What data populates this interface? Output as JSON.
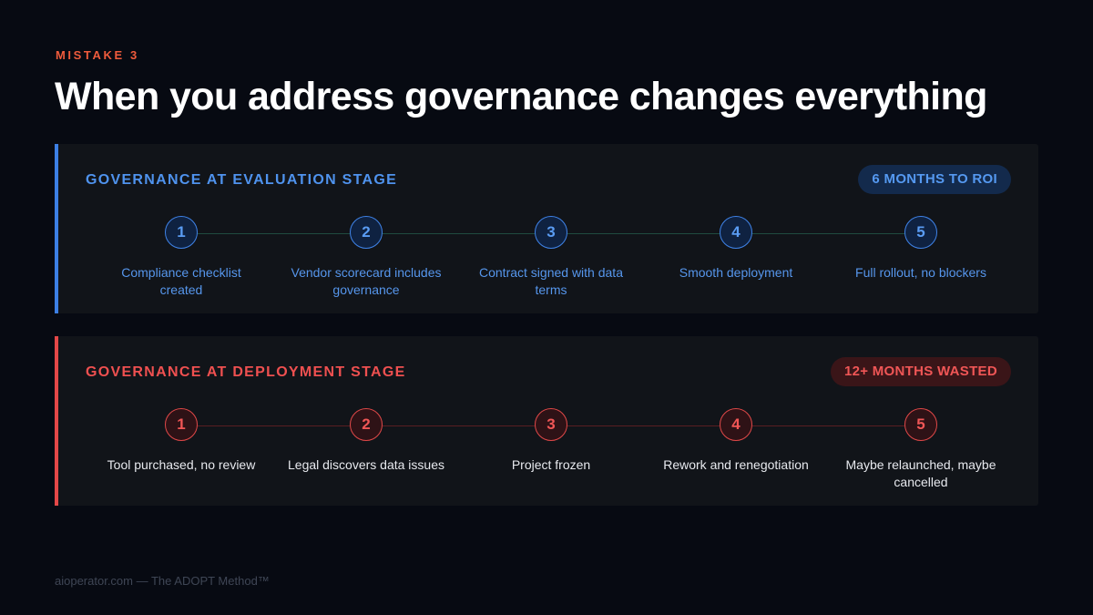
{
  "eyebrow": "MISTAKE 3",
  "title": "When you address governance changes everything",
  "colors": {
    "background": "#070a12",
    "eyebrow": "#ef5b3c",
    "eval_accent": "#3c7fe4",
    "deploy_accent": "#e44848"
  },
  "panels": {
    "evaluation": {
      "heading": "GOVERNANCE AT EVALUATION STAGE",
      "badge": "6 MONTHS TO ROI",
      "steps": [
        {
          "number": "1",
          "label": "Compliance checklist created"
        },
        {
          "number": "2",
          "label": "Vendor scorecard includes governance"
        },
        {
          "number": "3",
          "label": "Contract signed with data terms"
        },
        {
          "number": "4",
          "label": "Smooth deployment"
        },
        {
          "number": "5",
          "label": "Full rollout, no blockers"
        }
      ]
    },
    "deployment": {
      "heading": "GOVERNANCE AT DEPLOYMENT STAGE",
      "badge": "12+ MONTHS WASTED",
      "steps": [
        {
          "number": "1",
          "label": "Tool purchased, no review"
        },
        {
          "number": "2",
          "label": "Legal discovers data issues"
        },
        {
          "number": "3",
          "label": "Project frozen"
        },
        {
          "number": "4",
          "label": "Rework and renegotiation"
        },
        {
          "number": "5",
          "label": "Maybe relaunched, maybe cancelled"
        }
      ]
    }
  },
  "footer": "aioperator.com — The ADOPT Method™"
}
